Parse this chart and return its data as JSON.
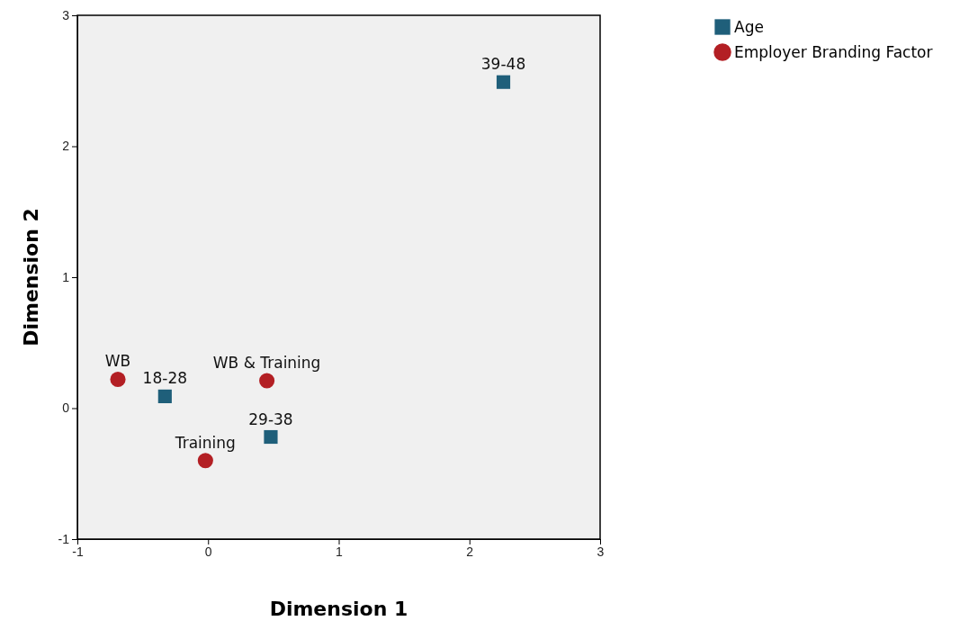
{
  "chart_data": {
    "type": "scatter",
    "xlabel": "Dimension 1",
    "ylabel": "Dimension 2",
    "xlim": [
      -1,
      3
    ],
    "ylim": [
      -1,
      3
    ],
    "xticks": [
      -1,
      0,
      1,
      2,
      3
    ],
    "yticks": [
      -1,
      0,
      1,
      2,
      3
    ],
    "grid": false,
    "legend": "top right",
    "series": [
      {
        "name": "Age",
        "color": "#1f5f7a",
        "marker": "square",
        "x": [
          -0.33,
          0.48,
          2.26
        ],
        "values": [
          0.09,
          -0.22,
          2.49
        ]
      },
      {
        "name": "Employer Branding Factor",
        "color": "#b31f24",
        "marker": "circle",
        "x": [
          -0.69,
          -0.02,
          0.45
        ],
        "values": [
          0.22,
          -0.4,
          0.21
        ]
      }
    ],
    "annotations": [
      {
        "text": "18-28",
        "x": -0.33,
        "y": 0.09
      },
      {
        "text": "29-38",
        "x": 0.48,
        "y": -0.22
      },
      {
        "text": "39-48",
        "x": 2.26,
        "y": 2.49
      },
      {
        "text": "WB",
        "x": -0.69,
        "y": 0.22
      },
      {
        "text": "Training",
        "x": -0.02,
        "y": -0.4
      },
      {
        "text": "WB & Training",
        "x": 0.45,
        "y": 0.21
      }
    ]
  }
}
